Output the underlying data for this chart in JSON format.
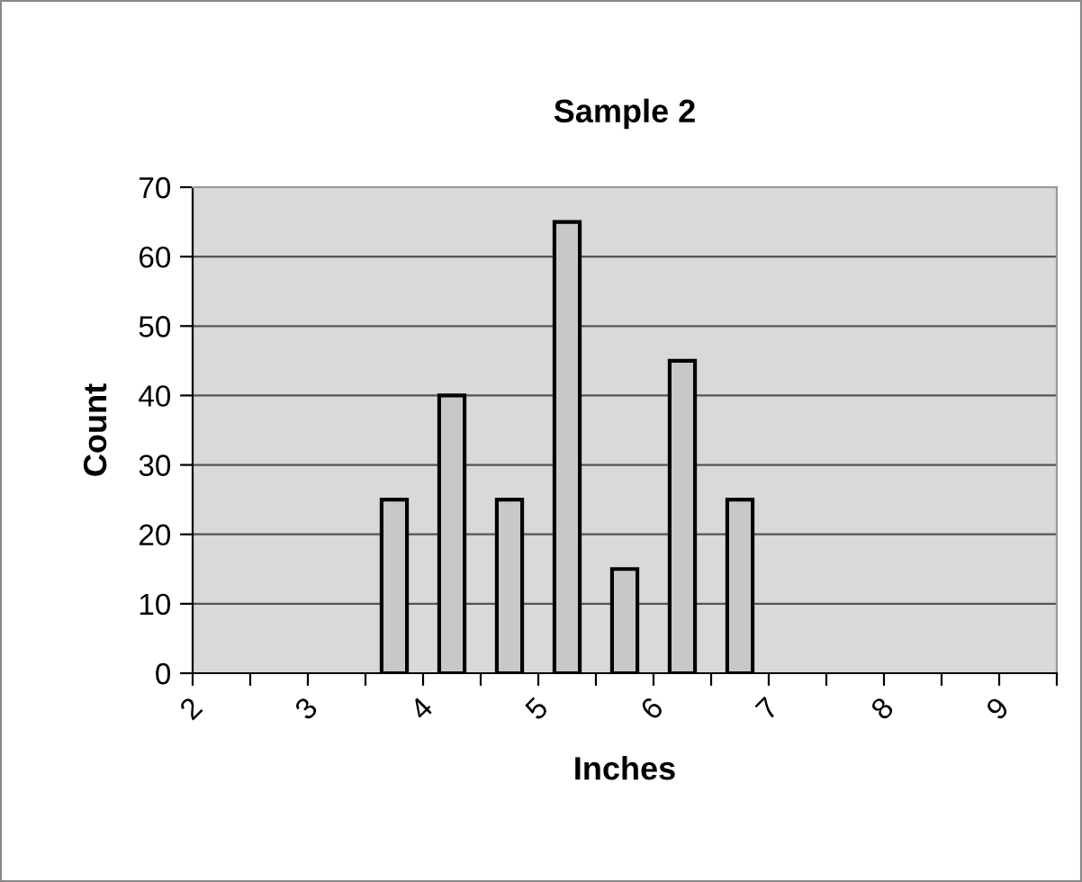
{
  "chart_data": {
    "type": "bar",
    "title": "Sample 2",
    "xlabel": "Inches",
    "ylabel": "Count",
    "x": [
      3.75,
      4.25,
      4.75,
      5.25,
      5.75,
      6.25,
      6.75
    ],
    "values": [
      25,
      40,
      25,
      65,
      15,
      45,
      25
    ],
    "color": "#c8c8c8",
    "xlim": [
      2,
      9.5
    ],
    "xticks": [
      2,
      {
        "value": 2.5,
        "label": null
      },
      3,
      {
        "value": 3.5,
        "label": null
      },
      4,
      {
        "value": 4.5,
        "label": null
      },
      5,
      {
        "value": 5.5,
        "label": null
      },
      6,
      {
        "value": 6.5,
        "label": null
      },
      7,
      {
        "value": 7.5,
        "label": null
      },
      8,
      {
        "value": 8.5,
        "label": null
      },
      9,
      {
        "value": 9.5,
        "label": null
      }
    ],
    "ylim": [
      0,
      70
    ],
    "yticks": [
      0,
      10,
      20,
      30,
      40,
      50,
      60,
      70
    ],
    "grid": "y"
  }
}
